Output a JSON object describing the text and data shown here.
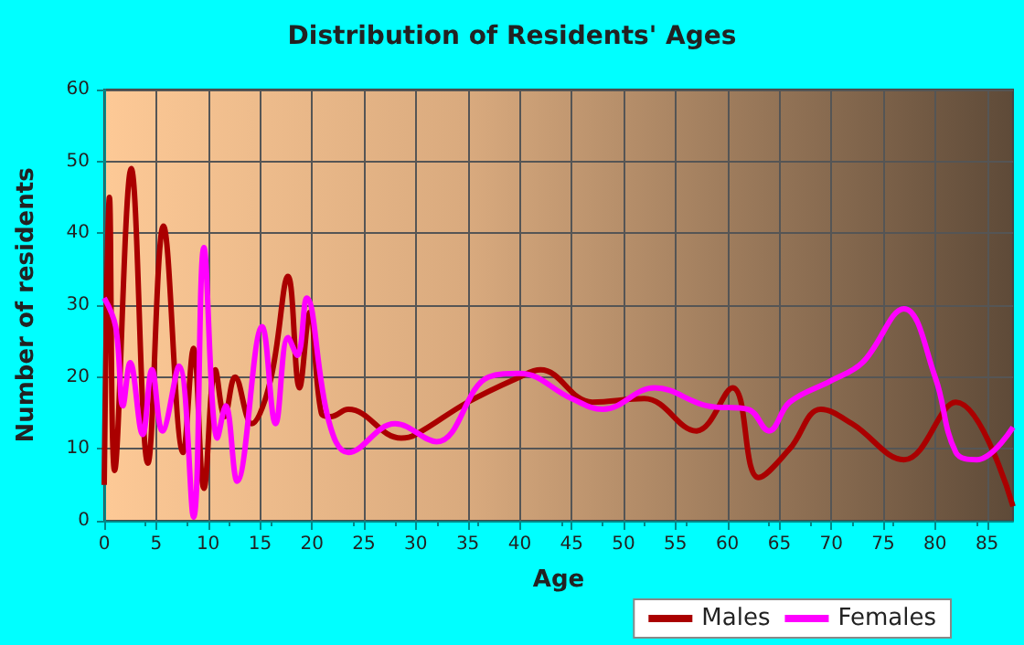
{
  "chart_data": {
    "type": "line",
    "title": "Distribution of Residents' Ages",
    "xlabel": "Age",
    "ylabel": "Number of residents",
    "xlim": [
      0,
      87.5
    ],
    "xticks": [
      0,
      5,
      10,
      15,
      20,
      25,
      30,
      35,
      40,
      45,
      50,
      55,
      60,
      65,
      70,
      75,
      80,
      85
    ],
    "ylim": [
      0,
      60
    ],
    "yticks": [
      0,
      10,
      20,
      30,
      40,
      50,
      60
    ],
    "grid": true,
    "legend": "bottom",
    "marker": "none",
    "line_style": "solid",
    "series": [
      {
        "name": "Males",
        "color": "#aa0000",
        "x": [
          0,
          0.5,
          1,
          2.6,
          4.2,
          5.7,
          7.6,
          8.6,
          9.6,
          10.7,
          11.6,
          12.6,
          14.2,
          16,
          17.7,
          18.8,
          19.8,
          20.9,
          21.8,
          23.5,
          28.6,
          30,
          35,
          40,
          42,
          47,
          52,
          57,
          60.5,
          63,
          66,
          69,
          72,
          77,
          82,
          87.5
        ],
        "values": [
          5,
          45,
          7,
          49,
          8,
          41,
          9.5,
          24,
          4.5,
          21,
          14.5,
          20,
          13.5,
          19.5,
          34,
          18.5,
          29,
          15,
          14.5,
          15.5,
          11.5,
          12,
          16.5,
          20,
          21,
          16.5,
          17,
          12.5,
          18.5,
          6,
          10,
          15.5,
          13.5,
          8.5,
          16.5,
          2
        ]
      },
      {
        "name": "Females",
        "color": "#ff00ff",
        "x": [
          0,
          1.1,
          1.8,
          2.5,
          3.7,
          4.6,
          5.6,
          7.2,
          8.6,
          9.6,
          10.9,
          11.7,
          12.8,
          15.2,
          16.5,
          17.7,
          18.6,
          19.5,
          21.6,
          23.5,
          28,
          32,
          37,
          40,
          45,
          48,
          53,
          58,
          62,
          64,
          66,
          70,
          73,
          77,
          80,
          82,
          84,
          87.5
        ],
        "values": [
          31,
          27,
          16,
          22,
          12,
          21,
          12.5,
          21.5,
          0.5,
          38,
          11.5,
          16,
          5.5,
          27,
          13.5,
          25.5,
          23,
          31,
          14,
          9.5,
          13.5,
          11,
          20,
          20.5,
          17,
          15.5,
          18.5,
          16,
          15.5,
          12.5,
          16.5,
          19.5,
          22,
          29.5,
          20,
          9.5,
          8.5,
          13
        ]
      }
    ]
  }
}
